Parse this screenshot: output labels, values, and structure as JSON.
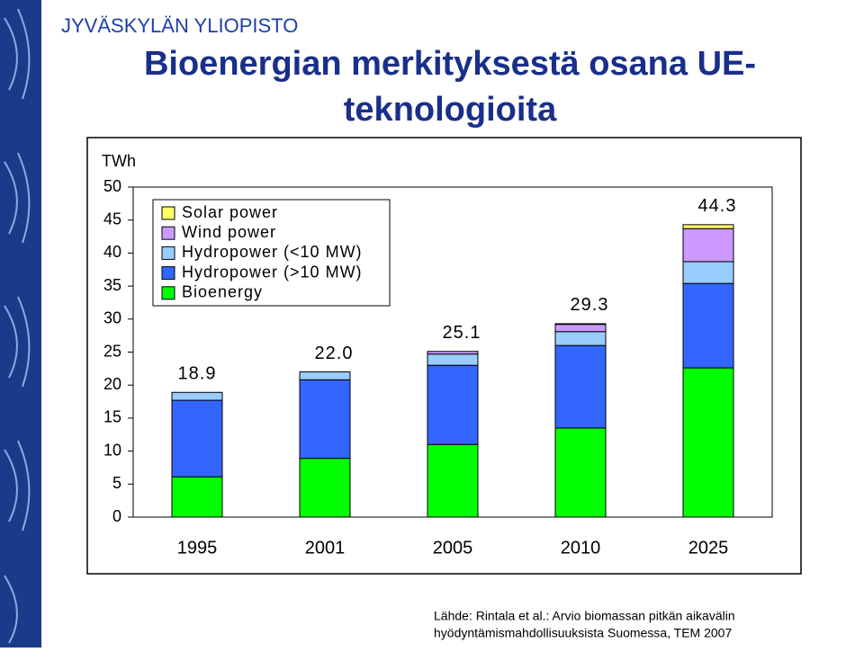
{
  "header": {
    "university": "JYVÄSKYLÄN YLIOPISTO",
    "title": [
      "Bioenergian merkityksestä osana UE-",
      "teknologioita"
    ]
  },
  "source": [
    "Lähde: Rintala et al.: Arvio biomassan pitkän aikavälin",
    "hyödyntämismahdollisuuksista Suomessa, TEM 2007"
  ],
  "chart_data": {
    "type": "stacked_bar",
    "ylabel": "TWh",
    "categories": [
      "1995",
      "2001",
      "2005",
      "2010",
      "2025"
    ],
    "series": [
      {
        "name": "Bioenergy",
        "color": "#00ff00",
        "values": [
          6.1,
          8.9,
          11.0,
          13.5,
          22.6
        ]
      },
      {
        "name": "Hydropower (>10 MW)",
        "color": "#3366ff",
        "values": [
          11.6,
          11.9,
          12.0,
          12.5,
          12.8
        ]
      },
      {
        "name": "Hydropower (<10 MW)",
        "color": "#99ccff",
        "values": [
          1.2,
          1.2,
          1.7,
          2.1,
          3.3
        ]
      },
      {
        "name": "Wind power",
        "color": "#cc99ff",
        "values": [
          0,
          0,
          0.4,
          1.1,
          5.0
        ]
      },
      {
        "name": "Solar power",
        "color": "#ffff66",
        "values": [
          0,
          0,
          0,
          0.1,
          0.6
        ]
      }
    ],
    "totals": [
      18.9,
      22.0,
      25.1,
      29.3,
      44.3
    ],
    "total_labels": [
      "18.9",
      "22.0",
      "25.1",
      "29.3",
      "44.3"
    ],
    "ylim": [
      0,
      50
    ],
    "yticks": [
      0,
      5,
      10,
      15,
      20,
      25,
      30,
      35,
      40,
      45,
      50
    ],
    "legend": "upper left"
  }
}
